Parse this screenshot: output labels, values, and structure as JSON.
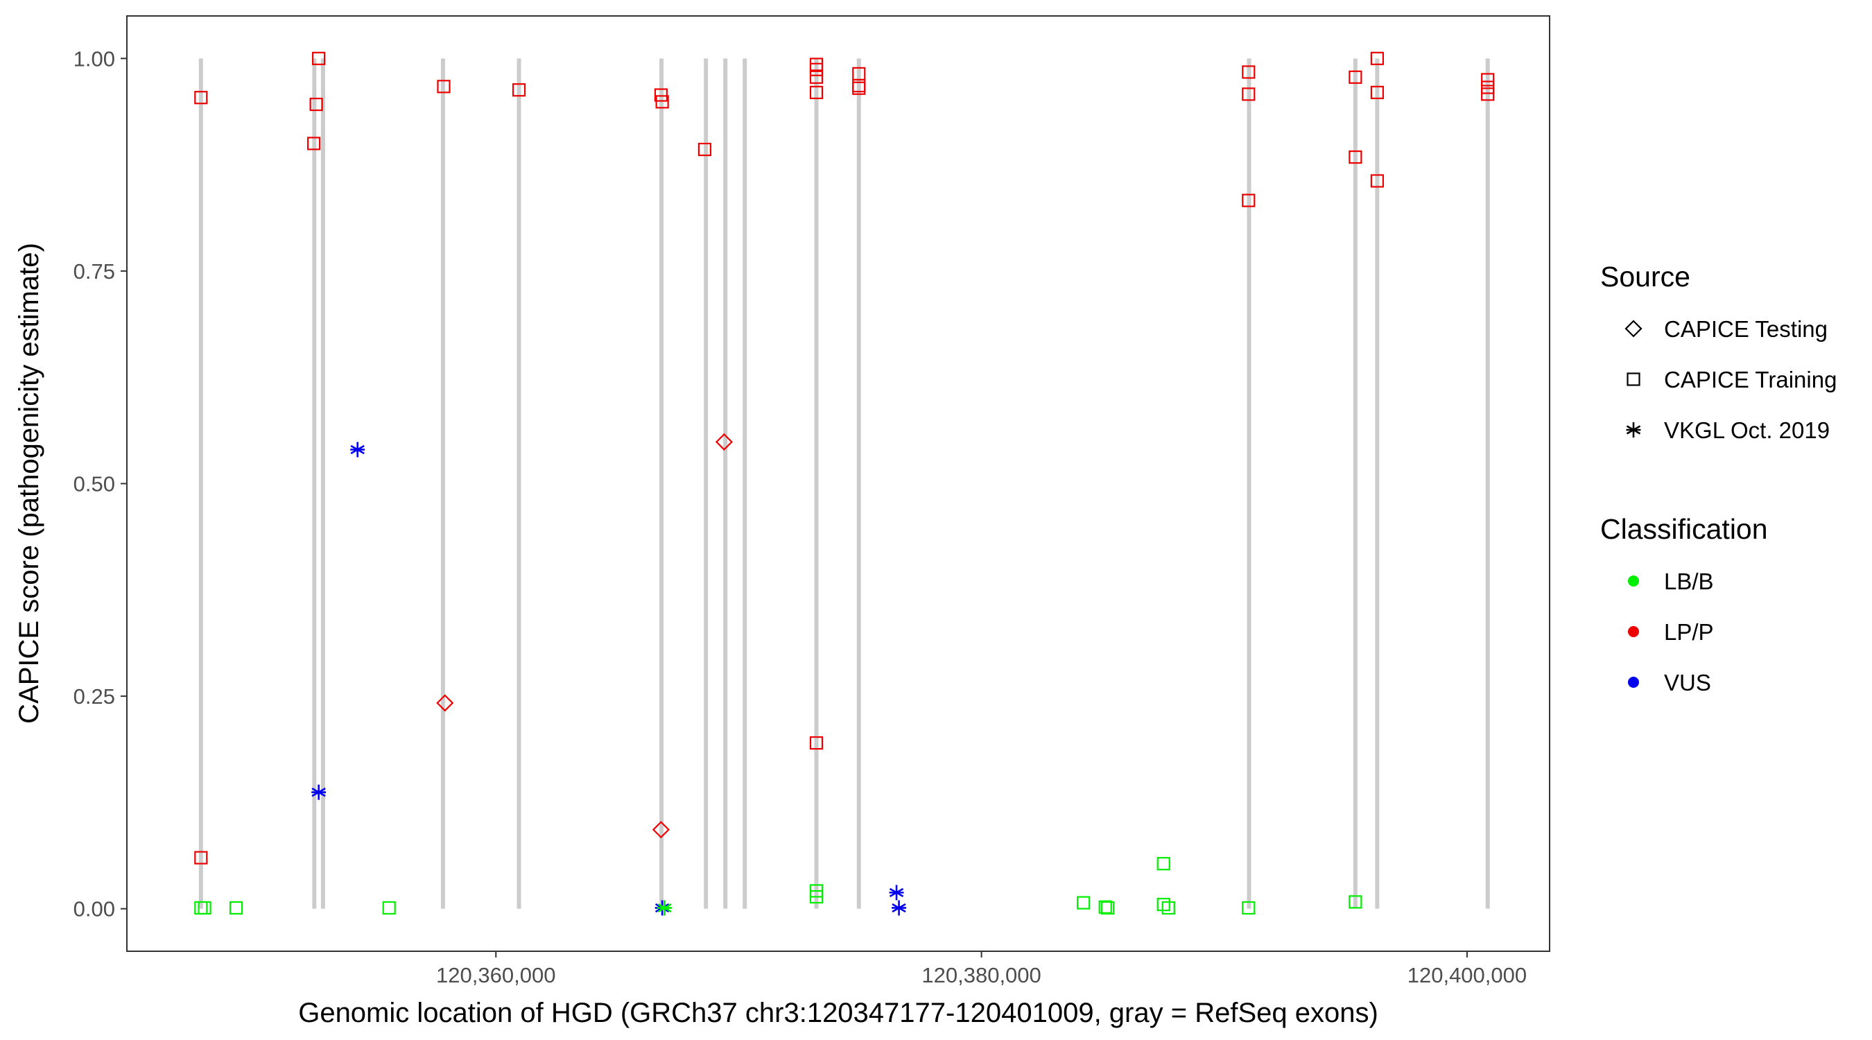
{
  "chart_data": {
    "type": "scatter",
    "title": "",
    "xlabel": "Genomic location of HGD (GRCh37 chr3:120347177-120401009, gray = RefSeq exons)",
    "ylabel": "CAPICE score (pathogenicity estimate)",
    "xlim": [
      120344800,
      120403400
    ],
    "ylim": [
      -0.05,
      1.05
    ],
    "x_ticks": [
      120360000,
      120380000,
      120400000
    ],
    "x_tick_labels": [
      "120,360,000",
      "120,380,000",
      "120,400,000"
    ],
    "y_ticks": [
      0,
      0.25,
      0.5,
      0.75,
      1
    ],
    "y_tick_labels": [
      "0.00",
      "0.25",
      "0.50",
      "0.75",
      "1.00"
    ],
    "grid": false,
    "exons": [
      120347850,
      120352520,
      120352880,
      120357820,
      120360950,
      120366820,
      120368650,
      120369450,
      120370250,
      120373200,
      120374950,
      120391020,
      120395400,
      120396300,
      120400850
    ],
    "exon_color": "#cccccc",
    "colors": {
      "LB/B": "#00ee00",
      "LP/P": "#ee0000",
      "VUS": "#0000ee"
    },
    "series": [
      {
        "source": "CAPICE Training",
        "classification": "LP/P",
        "points": [
          [
            120347850,
            0.954
          ],
          [
            120347850,
            0.06
          ],
          [
            120352700,
            1.0
          ],
          [
            120352600,
            0.946
          ],
          [
            120352500,
            0.9
          ],
          [
            120357850,
            0.967
          ],
          [
            120360950,
            0.963
          ],
          [
            120366800,
            0.957
          ],
          [
            120366850,
            0.949
          ],
          [
            120368600,
            0.893
          ],
          [
            120373200,
            0.993
          ],
          [
            120373200,
            0.987
          ],
          [
            120373200,
            0.978
          ],
          [
            120373200,
            0.96
          ],
          [
            120373200,
            0.195
          ],
          [
            120374950,
            0.982
          ],
          [
            120374950,
            0.968
          ],
          [
            120374950,
            0.965
          ],
          [
            120391000,
            0.984
          ],
          [
            120391000,
            0.958
          ],
          [
            120391000,
            0.833
          ],
          [
            120395400,
            0.978
          ],
          [
            120395400,
            0.884
          ],
          [
            120396300,
            1.0
          ],
          [
            120396300,
            0.96
          ],
          [
            120396300,
            0.856
          ],
          [
            120400850,
            0.975
          ],
          [
            120400850,
            0.966
          ],
          [
            120400850,
            0.958
          ]
        ]
      },
      {
        "source": "CAPICE Training",
        "classification": "LB/B",
        "points": [
          [
            120347850,
            0.001
          ],
          [
            120348000,
            0.001
          ],
          [
            120349300,
            0.001
          ],
          [
            120355600,
            0.001
          ],
          [
            120373200,
            0.021
          ],
          [
            120373200,
            0.014
          ],
          [
            120384200,
            0.007
          ],
          [
            120385100,
            0.002
          ],
          [
            120385200,
            0.001
          ],
          [
            120387500,
            0.053
          ],
          [
            120387500,
            0.005
          ],
          [
            120387700,
            0.001
          ],
          [
            120391000,
            0.001
          ],
          [
            120395400,
            0.008
          ]
        ]
      },
      {
        "source": "CAPICE Testing",
        "classification": "LP/P",
        "points": [
          [
            120357900,
            0.242
          ],
          [
            120366800,
            0.093
          ],
          [
            120369400,
            0.549
          ]
        ]
      },
      {
        "source": "VKGL Oct. 2019",
        "classification": "VUS",
        "points": [
          [
            120354300,
            0.54
          ],
          [
            120352700,
            0.137
          ],
          [
            120376500,
            0.019
          ],
          [
            120376600,
            0.001
          ],
          [
            120366850,
            0.001
          ]
        ]
      },
      {
        "source": "VKGL Oct. 2019",
        "classification": "LB/B",
        "points": [
          [
            120366950,
            0.001
          ]
        ]
      }
    ],
    "legend_placement": "right",
    "legend": {
      "source_title": "Source",
      "source_items": [
        {
          "label": "CAPICE Testing",
          "shape": "diamond"
        },
        {
          "label": "CAPICE Training",
          "shape": "square"
        },
        {
          "label": "VKGL Oct. 2019",
          "shape": "asterisk"
        }
      ],
      "class_title": "Classification",
      "class_items": [
        {
          "label": "LB/B",
          "color": "#00ee00"
        },
        {
          "label": "LP/P",
          "color": "#ee0000"
        },
        {
          "label": "VUS",
          "color": "#0000ee"
        }
      ]
    }
  }
}
